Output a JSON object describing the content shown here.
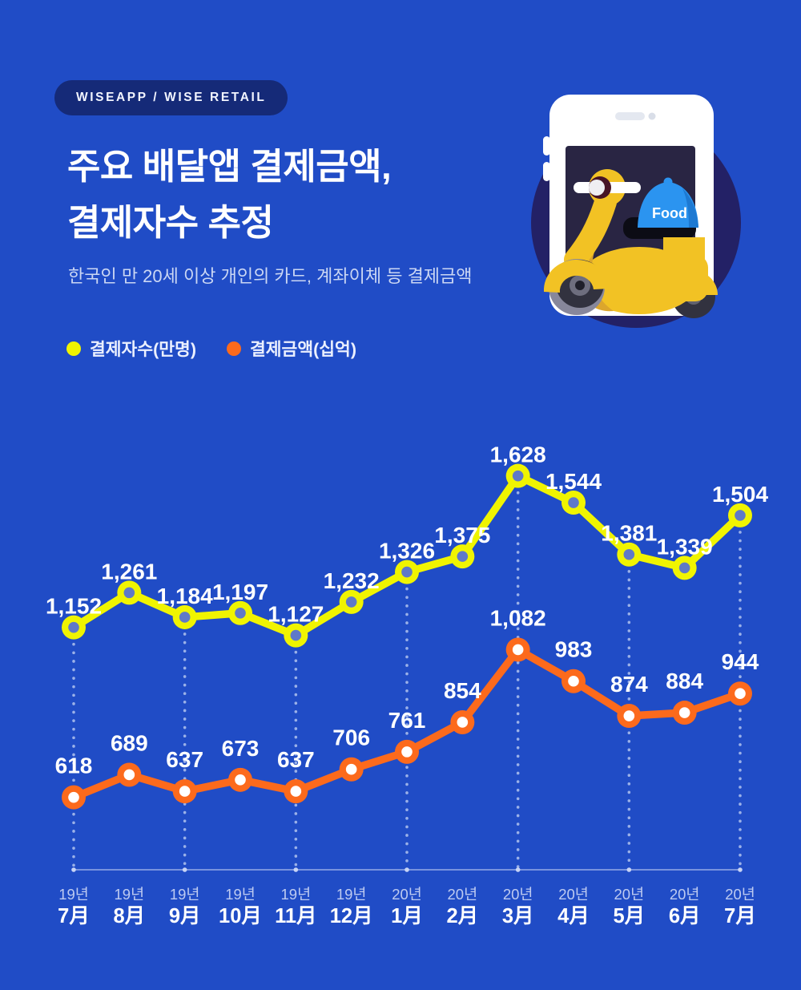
{
  "badge": {
    "label": "WISEAPP / WISE RETAIL"
  },
  "header": {
    "title_line1": "주요 배달앱 결제금액,",
    "title_line2": "결제자수 추정",
    "subtitle": "한국인 만 20세 이상 개인의 카드, 계좌이체 등 결제금액"
  },
  "legend": {
    "items": [
      {
        "label": "결제자수(만명)",
        "color": "#F0F400"
      },
      {
        "label": "결제금액(십억)",
        "color": "#FC6A1C"
      }
    ]
  },
  "illustration": {
    "name": "food-delivery-scooter-on-phone",
    "food_label": "Food"
  },
  "colors": {
    "background": "#204CC6",
    "badge_bg": "#152A78",
    "series_users": "#F0F400",
    "series_users_point_center": "#5F79C8",
    "series_amount": "#FC6A1C",
    "series_amount_point_center": "#FFFFFF",
    "grid_dotted": "#A9BCEC",
    "axis_line": "#C8D4F5",
    "value_label_text": "#FFFFFF",
    "x_year_label": "#BECBF1",
    "x_month_label": "#FFFFFF"
  },
  "chart_data": {
    "type": "line",
    "categories": [
      {
        "year": "19년",
        "month": "7月"
      },
      {
        "year": "19년",
        "month": "8月"
      },
      {
        "year": "19년",
        "month": "9月"
      },
      {
        "year": "19년",
        "month": "10月"
      },
      {
        "year": "19년",
        "month": "11月"
      },
      {
        "year": "19년",
        "month": "12月"
      },
      {
        "year": "20년",
        "month": "1月"
      },
      {
        "year": "20년",
        "month": "2月"
      },
      {
        "year": "20년",
        "month": "3月"
      },
      {
        "year": "20년",
        "month": "4月"
      },
      {
        "year": "20년",
        "month": "5月"
      },
      {
        "year": "20년",
        "month": "6月"
      },
      {
        "year": "20년",
        "month": "7月"
      }
    ],
    "series": [
      {
        "name": "결제자수(만명)",
        "color": "#F0F400",
        "point_center": "#5F79C8",
        "values": [
          1152,
          1261,
          1184,
          1197,
          1127,
          1232,
          1326,
          1375,
          1628,
          1544,
          1381,
          1339,
          1504
        ]
      },
      {
        "name": "결제금액(십억)",
        "color": "#FC6A1C",
        "point_center": "#FFFFFF",
        "values": [
          618,
          689,
          637,
          673,
          637,
          706,
          761,
          854,
          1082,
          983,
          874,
          884,
          944
        ]
      }
    ],
    "gridline_columns": [
      0,
      2,
      4,
      6,
      8,
      10,
      12
    ],
    "ylim": [
      400,
      1750
    ],
    "grid": "dotted-vertical-alternate-columns",
    "legend_position": "top-left",
    "xlabel": "",
    "ylabel": ""
  }
}
